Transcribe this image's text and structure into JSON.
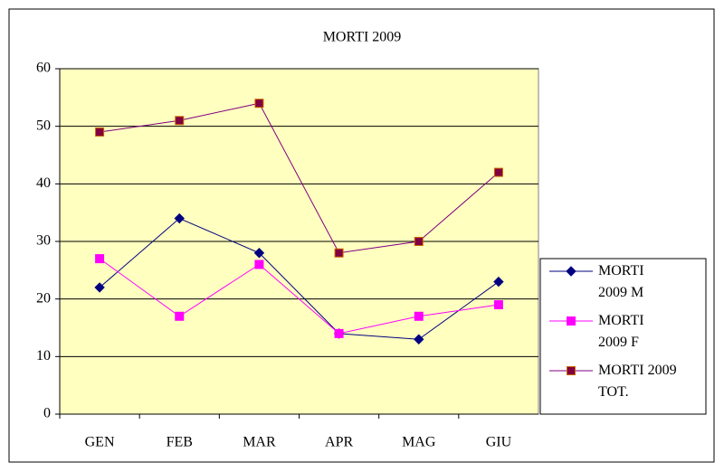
{
  "chart_data": {
    "type": "line",
    "title": "MORTI 2009",
    "categories": [
      "GEN",
      "FEB",
      "MAR",
      "APR",
      "MAG",
      "GIU"
    ],
    "series": [
      {
        "name": "MORTI 2009 M",
        "color": "#000080",
        "marker": "diamond",
        "marker_color": "#000080",
        "values": [
          22,
          34,
          28,
          14,
          13,
          23
        ]
      },
      {
        "name": "MORTI 2009 F",
        "color": "#ff00ff",
        "marker": "square",
        "marker_color": "#ff00ff",
        "values": [
          27,
          17,
          26,
          14,
          17,
          19
        ]
      },
      {
        "name": "MORTI 2009 TOT.",
        "color": "#800080",
        "marker": "square",
        "marker_color": "#800040",
        "values": [
          49,
          51,
          54,
          28,
          30,
          42
        ]
      }
    ],
    "ylim": [
      0,
      60
    ],
    "yticks": [
      0,
      10,
      20,
      30,
      40,
      50,
      60
    ],
    "grid": true,
    "legend": "right",
    "plot_background": "#ffffc0"
  }
}
